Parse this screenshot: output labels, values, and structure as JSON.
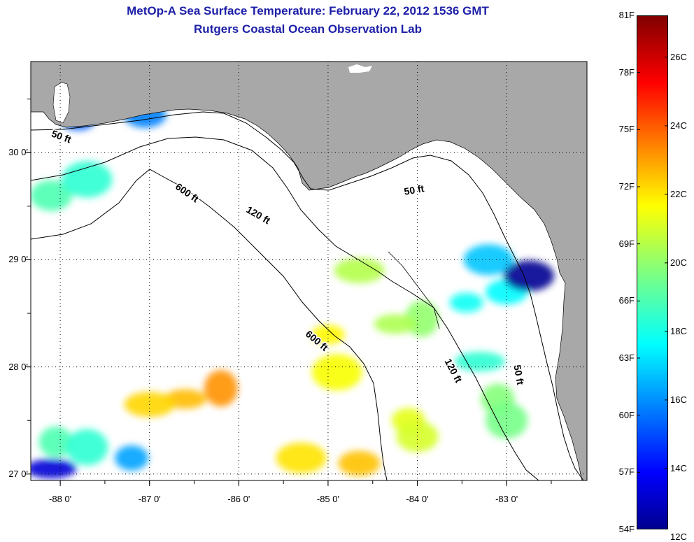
{
  "title": {
    "line1": "MetOp-A Sea Surface Temperature:  February 22, 2012 1536 GMT",
    "line2": "Rutgers Coastal Ocean Observation Lab"
  },
  "colors": {
    "land": "#a8a8a8",
    "water": "#ffffff",
    "title": "#1d1fa8"
  },
  "axes": {
    "x_ticks": [
      {
        "value": -88,
        "label": "-88 0'"
      },
      {
        "value": -87,
        "label": "-87 0'"
      },
      {
        "value": -86,
        "label": "-86 0'"
      },
      {
        "value": -85,
        "label": "-85 0'"
      },
      {
        "value": -84,
        "label": "-84 0'"
      },
      {
        "value": -83,
        "label": "-83 0'"
      }
    ],
    "y_ticks": [
      {
        "value": 30,
        "label": "30 0'"
      },
      {
        "value": 29,
        "label": "29 0'"
      },
      {
        "value": 28,
        "label": "28 0'"
      },
      {
        "value": 27,
        "label": "27 0'"
      }
    ],
    "lon_range": [
      -88.33,
      -82.1
    ],
    "lat_range": [
      26.94,
      30.85
    ],
    "grid": true
  },
  "contour_labels": [
    {
      "text": "50 ft",
      "lon": -88.0,
      "lat": 30.12,
      "angle": 20
    },
    {
      "text": "600 ft",
      "lon": -86.6,
      "lat": 29.6,
      "angle": 35
    },
    {
      "text": "120 ft",
      "lon": -85.8,
      "lat": 29.39,
      "angle": 30
    },
    {
      "text": "50 ft",
      "lon": -84.03,
      "lat": 29.62,
      "angle": -10
    },
    {
      "text": "600 ft",
      "lon": -85.15,
      "lat": 28.22,
      "angle": 40
    },
    {
      "text": "120 ft",
      "lon": -83.63,
      "lat": 27.95,
      "angle": 62
    },
    {
      "text": "50 ft",
      "lon": -82.9,
      "lat": 27.92,
      "angle": 80
    }
  ],
  "colorbar": {
    "fahrenheit": [
      {
        "value": 81,
        "label": "81F"
      },
      {
        "value": 78,
        "label": "78F"
      },
      {
        "value": 75,
        "label": "75F"
      },
      {
        "value": 72,
        "label": "72F"
      },
      {
        "value": 69,
        "label": "69F"
      },
      {
        "value": 66,
        "label": "66F"
      },
      {
        "value": 63,
        "label": "63F"
      },
      {
        "value": 60,
        "label": "60F"
      },
      {
        "value": 57,
        "label": "57F"
      },
      {
        "value": 54,
        "label": "54F"
      }
    ],
    "celsius": [
      {
        "value": 26,
        "label": "26C"
      },
      {
        "value": 24,
        "label": "24C"
      },
      {
        "value": 22,
        "label": "22C"
      },
      {
        "value": 20,
        "label": "20C"
      },
      {
        "value": 18,
        "label": "18C"
      },
      {
        "value": 16,
        "label": "16C"
      },
      {
        "value": 14,
        "label": "14C"
      },
      {
        "value": 12,
        "label": "12C"
      }
    ],
    "range_f": [
      54,
      81
    ],
    "colormap": "jet"
  },
  "sst_patches": [
    {
      "lon": -83.45,
      "lat": 28.6,
      "temp_c": 18.0
    },
    {
      "lon": -83.0,
      "lat": 28.7,
      "temp_c": 17.8
    },
    {
      "lon": -83.2,
      "lat": 29.0,
      "temp_c": 17.0
    },
    {
      "lon": -83.95,
      "lat": 28.45,
      "temp_c": 20.0
    },
    {
      "lon": -84.25,
      "lat": 28.4,
      "temp_c": 20.4
    },
    {
      "lon": -84.65,
      "lat": 28.9,
      "temp_c": 20.5
    },
    {
      "lon": -83.1,
      "lat": 27.7,
      "temp_c": 19.8
    },
    {
      "lon": -83.0,
      "lat": 27.5,
      "temp_c": 19.6
    },
    {
      "lon": -83.3,
      "lat": 28.05,
      "temp_c": 18.5
    },
    {
      "lon": -84.1,
      "lat": 27.5,
      "temp_c": 21.2
    },
    {
      "lon": -84.0,
      "lat": 27.35,
      "temp_c": 21.0
    },
    {
      "lon": -84.9,
      "lat": 27.95,
      "temp_c": 21.5
    },
    {
      "lon": -85.0,
      "lat": 28.3,
      "temp_c": 21.7
    },
    {
      "lon": -84.65,
      "lat": 27.1,
      "temp_c": 22.5
    },
    {
      "lon": -85.3,
      "lat": 27.15,
      "temp_c": 22.0
    },
    {
      "lon": -86.2,
      "lat": 27.8,
      "temp_c": 23.2
    },
    {
      "lon": -86.6,
      "lat": 27.7,
      "temp_c": 22.6
    },
    {
      "lon": -87.0,
      "lat": 27.65,
      "temp_c": 22.2
    },
    {
      "lon": -88.05,
      "lat": 27.3,
      "temp_c": 19.0
    },
    {
      "lon": -87.7,
      "lat": 27.25,
      "temp_c": 18.5
    },
    {
      "lon": -88.1,
      "lat": 27.05,
      "temp_c": 13.5
    },
    {
      "lon": -87.2,
      "lat": 27.15,
      "temp_c": 16.5
    },
    {
      "lon": -88.1,
      "lat": 29.6,
      "temp_c": 19.0
    },
    {
      "lon": -87.7,
      "lat": 29.75,
      "temp_c": 18.5
    },
    {
      "lon": -87.8,
      "lat": 30.3,
      "temp_c": 15.5
    },
    {
      "lon": -87.05,
      "lat": 30.35,
      "temp_c": 16.0
    },
    {
      "lon": -82.75,
      "lat": 28.85,
      "temp_c": 12.5
    }
  ]
}
